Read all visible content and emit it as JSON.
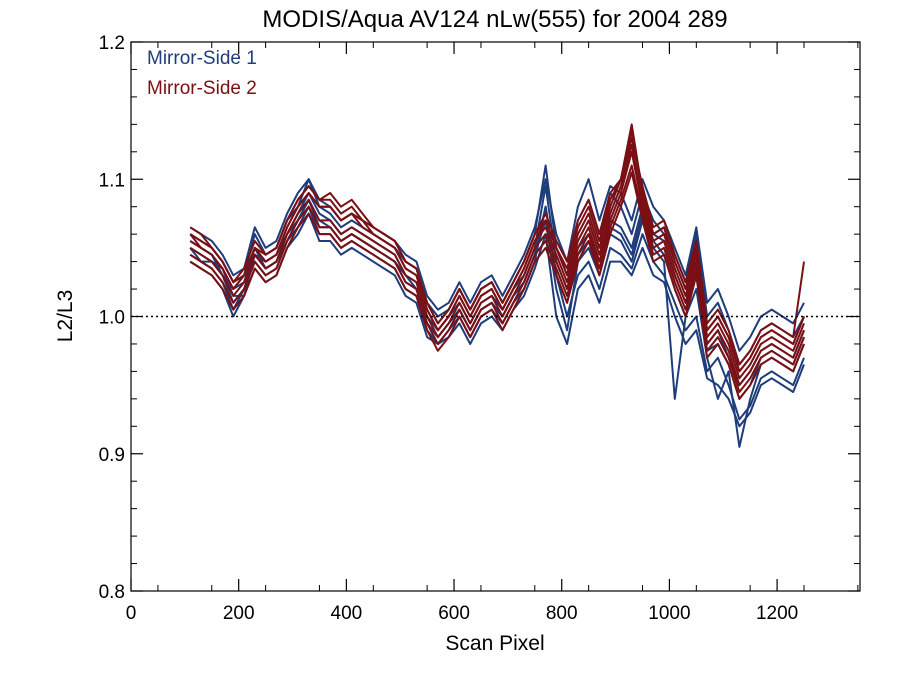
{
  "chart_data": {
    "type": "line",
    "title": "MODIS/Aqua AV124 nLw(555) for 2004 289",
    "xlabel": "Scan Pixel",
    "ylabel": "L2/L3",
    "xlim": [
      0,
      1354
    ],
    "ylim": [
      0.8,
      1.2
    ],
    "x_ticks": [
      0,
      200,
      400,
      600,
      800,
      1000,
      1200
    ],
    "x_tick_labels": [
      "0",
      "200",
      "400",
      "600",
      "800",
      "1000",
      "1200"
    ],
    "y_ticks": [
      0.8,
      0.9,
      1.0,
      1.1,
      1.2
    ],
    "y_tick_labels": [
      "0.8",
      "0.9",
      "1.0",
      "1.1",
      "1.2"
    ],
    "reference_line": {
      "y": 1.0,
      "style": "dotted"
    },
    "legend_position": "top-left",
    "colors": {
      "mirror_side_1": "#1f3d7a",
      "mirror_side_2": "#7a0f14"
    },
    "x": [
      110,
      130,
      150,
      170,
      190,
      210,
      230,
      250,
      270,
      290,
      310,
      330,
      350,
      370,
      390,
      410,
      430,
      450,
      470,
      490,
      510,
      530,
      550,
      570,
      590,
      610,
      630,
      650,
      670,
      690,
      710,
      730,
      750,
      770,
      790,
      810,
      830,
      850,
      870,
      890,
      910,
      930,
      950,
      970,
      990,
      1010,
      1030,
      1050,
      1070,
      1090,
      1110,
      1130,
      1150,
      1170,
      1190,
      1210,
      1230,
      1250
    ],
    "series": [
      {
        "name": "Mirror-Side 1",
        "side": 1,
        "values": [
          1.055,
          1.05,
          1.045,
          1.03,
          1.02,
          1.025,
          1.05,
          1.035,
          1.04,
          1.06,
          1.075,
          1.09,
          1.075,
          1.07,
          1.06,
          1.065,
          1.06,
          1.055,
          1.05,
          1.045,
          1.03,
          1.025,
          1.0,
          0.99,
          1.0,
          1.01,
          0.995,
          1.01,
          1.015,
          1.005,
          1.02,
          1.03,
          1.05,
          1.095,
          1.04,
          1.02,
          1.05,
          1.06,
          1.04,
          1.07,
          1.065,
          1.05,
          1.08,
          1.06,
          1.055,
          1.03,
          1.01,
          1.04,
          0.98,
          0.99,
          0.97,
          0.95,
          0.96,
          0.975,
          0.98,
          0.975,
          0.97,
          0.99
        ]
      },
      {
        "side": 1,
        "values": [
          1.045,
          1.04,
          1.035,
          1.025,
          1.005,
          1.02,
          1.04,
          1.03,
          1.035,
          1.055,
          1.065,
          1.08,
          1.06,
          1.06,
          1.05,
          1.055,
          1.05,
          1.045,
          1.04,
          1.035,
          1.02,
          1.015,
          0.99,
          0.98,
          0.99,
          1.0,
          0.985,
          1.0,
          1.005,
          0.995,
          1.01,
          1.02,
          1.04,
          1.08,
          1.03,
          1.0,
          1.03,
          1.04,
          1.02,
          1.05,
          1.045,
          1.035,
          1.06,
          1.04,
          1.03,
          1.01,
          0.99,
          1.0,
          0.96,
          0.97,
          0.95,
          0.925,
          0.935,
          0.955,
          0.96,
          0.955,
          0.95,
          0.97
        ]
      },
      {
        "side": 1,
        "values": [
          1.06,
          1.055,
          1.05,
          1.04,
          1.025,
          1.03,
          1.06,
          1.045,
          1.05,
          1.07,
          1.08,
          1.1,
          1.08,
          1.075,
          1.065,
          1.07,
          1.065,
          1.06,
          1.055,
          1.05,
          1.04,
          1.035,
          1.01,
          1.0,
          1.005,
          1.02,
          1.005,
          1.02,
          1.025,
          1.01,
          1.025,
          1.04,
          1.06,
          1.11,
          1.05,
          1.03,
          1.07,
          1.085,
          1.06,
          1.09,
          1.08,
          1.06,
          1.09,
          1.07,
          1.06,
          1.045,
          1.025,
          1.06,
          1.0,
          1.01,
          0.99,
          0.965,
          0.975,
          0.99,
          0.995,
          0.99,
          0.985,
          1.0
        ]
      },
      {
        "side": 1,
        "values": [
          1.05,
          1.045,
          1.04,
          1.035,
          1.015,
          1.015,
          1.045,
          1.04,
          1.045,
          1.06,
          1.07,
          1.085,
          1.07,
          1.065,
          1.055,
          1.06,
          1.055,
          1.05,
          1.045,
          1.04,
          1.03,
          1.02,
          0.995,
          0.985,
          0.995,
          1.005,
          0.99,
          1.005,
          1.01,
          1.0,
          1.015,
          1.025,
          1.045,
          1.07,
          1.02,
          0.99,
          1.04,
          1.05,
          1.03,
          1.06,
          1.055,
          1.04,
          1.07,
          1.05,
          1.04,
          0.94,
          1.0,
          1.02,
          0.97,
          0.94,
          0.96,
          0.905,
          0.94,
          0.965,
          0.97,
          0.965,
          0.96,
          0.98
        ]
      },
      {
        "side": 1,
        "values": [
          1.04,
          1.035,
          1.03,
          1.02,
          1.0,
          1.015,
          1.035,
          1.025,
          1.03,
          1.05,
          1.06,
          1.075,
          1.055,
          1.055,
          1.045,
          1.05,
          1.045,
          1.04,
          1.035,
          1.03,
          1.015,
          1.01,
          0.985,
          0.98,
          0.985,
          0.995,
          0.98,
          0.995,
          1.0,
          0.99,
          1.005,
          1.015,
          1.035,
          1.06,
          1.0,
          0.98,
          1.02,
          1.03,
          1.01,
          1.04,
          1.04,
          1.03,
          1.05,
          1.03,
          1.025,
          1.0,
          0.98,
          0.99,
          0.955,
          0.95,
          0.94,
          0.92,
          0.93,
          0.95,
          0.955,
          0.95,
          0.945,
          0.965
        ]
      },
      {
        "side": 1,
        "values": [
          1.065,
          1.06,
          1.055,
          1.045,
          1.03,
          1.035,
          1.065,
          1.05,
          1.055,
          1.075,
          1.09,
          1.1,
          1.085,
          1.08,
          1.07,
          1.075,
          1.07,
          1.065,
          1.06,
          1.055,
          1.045,
          1.04,
          1.015,
          1.005,
          1.01,
          1.025,
          1.01,
          1.025,
          1.03,
          1.015,
          1.03,
          1.045,
          1.065,
          1.1,
          1.06,
          1.04,
          1.08,
          1.1,
          1.07,
          1.095,
          1.09,
          1.07,
          1.1,
          1.08,
          1.07,
          1.05,
          1.03,
          1.065,
          1.01,
          1.02,
          1.0,
          0.975,
          0.985,
          1.0,
          1.005,
          1.0,
          0.995,
          1.01
        ]
      },
      {
        "side": 1,
        "values": [
          1.05,
          1.04,
          1.04,
          1.03,
          1.01,
          1.02,
          1.045,
          1.035,
          1.04,
          1.055,
          1.07,
          1.085,
          1.065,
          1.065,
          1.055,
          1.06,
          1.055,
          1.05,
          1.045,
          1.04,
          1.025,
          1.02,
          0.995,
          0.985,
          0.995,
          1.005,
          0.99,
          1.005,
          1.01,
          1.0,
          1.015,
          1.025,
          1.045,
          1.08,
          1.03,
          1.01,
          1.045,
          1.055,
          1.035,
          1.065,
          1.06,
          1.045,
          1.075,
          1.055,
          1.045,
          1.02,
          1.0,
          1.03,
          0.975,
          0.98,
          0.965,
          0.94,
          0.95,
          0.97,
          0.975,
          0.97,
          0.965,
          0.985
        ]
      },
      {
        "name": "Mirror-Side 2",
        "side": 2,
        "values": [
          1.06,
          1.05,
          1.045,
          1.035,
          1.02,
          1.03,
          1.05,
          1.04,
          1.045,
          1.065,
          1.08,
          1.09,
          1.08,
          1.08,
          1.07,
          1.075,
          1.07,
          1.06,
          1.055,
          1.05,
          1.035,
          1.03,
          1.005,
          0.99,
          1.0,
          1.015,
          1.0,
          1.015,
          1.02,
          1.005,
          1.02,
          1.035,
          1.055,
          1.07,
          1.05,
          1.03,
          1.06,
          1.075,
          1.05,
          1.08,
          1.1,
          1.14,
          1.09,
          1.06,
          1.065,
          1.04,
          1.02,
          1.05,
          0.99,
          1.0,
          0.985,
          0.96,
          0.97,
          0.985,
          0.99,
          0.985,
          0.98,
          1.0
        ]
      },
      {
        "side": 2,
        "values": [
          1.05,
          1.045,
          1.04,
          1.03,
          1.015,
          1.025,
          1.045,
          1.035,
          1.04,
          1.06,
          1.075,
          1.085,
          1.07,
          1.07,
          1.06,
          1.065,
          1.06,
          1.055,
          1.05,
          1.045,
          1.03,
          1.025,
          1.0,
          0.985,
          0.995,
          1.01,
          0.995,
          1.01,
          1.015,
          1.0,
          1.015,
          1.03,
          1.05,
          1.06,
          1.04,
          1.02,
          1.05,
          1.065,
          1.04,
          1.07,
          1.09,
          1.12,
          1.08,
          1.05,
          1.055,
          1.03,
          1.01,
          1.04,
          0.98,
          0.99,
          0.975,
          0.95,
          0.96,
          0.975,
          0.98,
          0.975,
          0.97,
          0.99
        ]
      },
      {
        "side": 2,
        "values": [
          1.065,
          1.06,
          1.05,
          1.04,
          1.025,
          1.035,
          1.055,
          1.045,
          1.05,
          1.07,
          1.085,
          1.095,
          1.085,
          1.09,
          1.08,
          1.085,
          1.075,
          1.065,
          1.06,
          1.055,
          1.04,
          1.035,
          1.01,
          0.995,
          1.005,
          1.02,
          1.005,
          1.02,
          1.025,
          1.01,
          1.025,
          1.04,
          1.06,
          1.075,
          1.055,
          1.04,
          1.07,
          1.085,
          1.06,
          1.09,
          1.1,
          1.13,
          1.095,
          1.065,
          1.07,
          1.045,
          1.025,
          1.055,
          0.995,
          1.005,
          0.99,
          0.965,
          0.975,
          0.99,
          0.995,
          0.99,
          0.985,
          1.04
        ]
      },
      {
        "side": 2,
        "values": [
          1.045,
          1.04,
          1.035,
          1.025,
          1.01,
          1.02,
          1.04,
          1.03,
          1.035,
          1.055,
          1.07,
          1.08,
          1.065,
          1.065,
          1.055,
          1.06,
          1.055,
          1.05,
          1.045,
          1.04,
          1.025,
          1.02,
          0.995,
          0.98,
          0.99,
          1.005,
          0.99,
          1.005,
          1.01,
          0.995,
          1.01,
          1.025,
          1.045,
          1.055,
          1.035,
          1.015,
          1.045,
          1.06,
          1.035,
          1.065,
          1.085,
          1.11,
          1.075,
          1.045,
          1.05,
          1.025,
          1.005,
          1.035,
          0.975,
          0.985,
          0.97,
          0.945,
          0.955,
          0.97,
          0.975,
          0.97,
          0.965,
          0.985
        ]
      },
      {
        "side": 2,
        "values": [
          1.055,
          1.05,
          1.045,
          1.035,
          1.02,
          1.03,
          1.05,
          1.04,
          1.045,
          1.065,
          1.08,
          1.09,
          1.08,
          1.08,
          1.07,
          1.075,
          1.065,
          1.06,
          1.055,
          1.05,
          1.035,
          1.03,
          1.005,
          0.99,
          1.0,
          1.015,
          1.0,
          1.015,
          1.02,
          1.005,
          1.02,
          1.035,
          1.055,
          1.065,
          1.045,
          1.025,
          1.055,
          1.07,
          1.045,
          1.075,
          1.095,
          1.125,
          1.085,
          1.055,
          1.06,
          1.035,
          1.015,
          1.045,
          0.985,
          0.995,
          0.98,
          0.955,
          0.965,
          0.98,
          0.985,
          0.98,
          0.975,
          0.995
        ]
      },
      {
        "side": 2,
        "values": [
          1.04,
          1.035,
          1.03,
          1.02,
          1.005,
          1.015,
          1.035,
          1.025,
          1.03,
          1.05,
          1.065,
          1.075,
          1.06,
          1.06,
          1.05,
          1.055,
          1.05,
          1.045,
          1.04,
          1.035,
          1.02,
          1.015,
          0.99,
          0.975,
          0.985,
          1.0,
          0.985,
          1.0,
          1.005,
          0.99,
          1.005,
          1.02,
          1.04,
          1.05,
          1.03,
          1.01,
          1.04,
          1.055,
          1.03,
          1.06,
          1.08,
          1.105,
          1.07,
          1.04,
          1.045,
          1.02,
          1.0,
          1.03,
          0.97,
          0.98,
          0.965,
          0.94,
          0.95,
          0.965,
          0.97,
          0.965,
          0.96,
          0.98
        ]
      },
      {
        "side": 2,
        "values": [
          1.06,
          1.055,
          1.05,
          1.04,
          1.025,
          1.03,
          1.05,
          1.045,
          1.05,
          1.07,
          1.085,
          1.095,
          1.085,
          1.085,
          1.075,
          1.08,
          1.07,
          1.065,
          1.06,
          1.055,
          1.04,
          1.035,
          1.01,
          0.995,
          1.005,
          1.02,
          1.005,
          1.02,
          1.025,
          1.01,
          1.025,
          1.04,
          1.06,
          1.07,
          1.05,
          1.035,
          1.065,
          1.08,
          1.055,
          1.085,
          1.1,
          1.135,
          1.09,
          1.06,
          1.065,
          1.04,
          1.02,
          1.05,
          0.99,
          1.0,
          0.985,
          0.96,
          0.97,
          0.985,
          0.99,
          0.985,
          0.98,
          1.0
        ]
      }
    ]
  },
  "legend": {
    "items": [
      {
        "label": "Mirror-Side 1",
        "color": "#1f3d7a"
      },
      {
        "label": "Mirror-Side 2",
        "color": "#7a0f14"
      }
    ]
  }
}
